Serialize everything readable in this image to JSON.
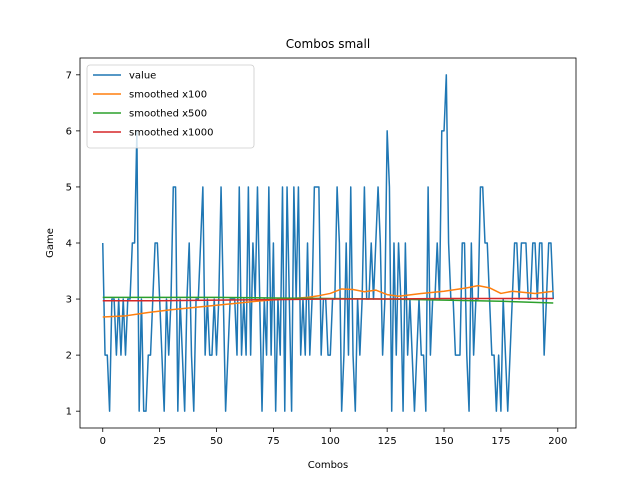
{
  "chart_data": {
    "type": "line",
    "title": "Combos small",
    "xlabel": "Combos",
    "ylabel": "Game",
    "xlim": [
      -10,
      208
    ],
    "ylim": [
      0.7,
      7.3
    ],
    "xticks": [
      0,
      25,
      50,
      75,
      100,
      125,
      150,
      175,
      200
    ],
    "yticks": [
      1,
      2,
      3,
      4,
      5,
      6,
      7
    ],
    "legend_position": "upper-left",
    "series": [
      {
        "name": "value",
        "color": "#1f77b4",
        "x_start": 0,
        "values": [
          4,
          2,
          2,
          1,
          3,
          3,
          2,
          3,
          2,
          3,
          2,
          3,
          3,
          4,
          4,
          6,
          1,
          3,
          1,
          1,
          2,
          2,
          3,
          4,
          4,
          3,
          2,
          1,
          3,
          2,
          3,
          5,
          5,
          1,
          3,
          2,
          1,
          3,
          4,
          2,
          1,
          3,
          3,
          4,
          5,
          2,
          3,
          2,
          2,
          3,
          2,
          3,
          5,
          3,
          1,
          2,
          3,
          3,
          3,
          2,
          5,
          2,
          3,
          2,
          5,
          2,
          4,
          3,
          5,
          3,
          1,
          3,
          2,
          5,
          2,
          4,
          1,
          3,
          2,
          5,
          1,
          5,
          3,
          1,
          5,
          3,
          5,
          2,
          3,
          2,
          4,
          2,
          3,
          5,
          5,
          5,
          2,
          3,
          3,
          2,
          2,
          3,
          3,
          5,
          4,
          1,
          2,
          4,
          2,
          5,
          2,
          1,
          3,
          2,
          3,
          5,
          3,
          3,
          4,
          3,
          4,
          5,
          4,
          2,
          3,
          6,
          5,
          1,
          4,
          2,
          4,
          3,
          1,
          4,
          2,
          3,
          2,
          1,
          2,
          3,
          2,
          2,
          1,
          5,
          2,
          3,
          3,
          4,
          3,
          6,
          6,
          7,
          4,
          3,
          3,
          2,
          2,
          2,
          4,
          4,
          2,
          1,
          4,
          2,
          3,
          3,
          5,
          5,
          4,
          4,
          3,
          2,
          2,
          1,
          2,
          1,
          3,
          2,
          1,
          2,
          3,
          4,
          4,
          3,
          4,
          4,
          4,
          3,
          3,
          4,
          4,
          3,
          4,
          4,
          2,
          3,
          4,
          4,
          3
        ]
      },
      {
        "name": "smoothed x100",
        "color": "#ff7f0e",
        "x": [
          0,
          10,
          20,
          30,
          40,
          50,
          60,
          70,
          80,
          90,
          95,
          100,
          105,
          110,
          115,
          120,
          125,
          130,
          140,
          150,
          160,
          165,
          170,
          175,
          180,
          185,
          190,
          198
        ],
        "values": [
          2.68,
          2.7,
          2.76,
          2.81,
          2.85,
          2.89,
          2.93,
          2.97,
          3.0,
          3.03,
          3.06,
          3.1,
          3.18,
          3.17,
          3.13,
          3.16,
          3.08,
          3.05,
          3.1,
          3.14,
          3.2,
          3.24,
          3.2,
          3.1,
          3.14,
          3.12,
          3.1,
          3.14
        ]
      },
      {
        "name": "smoothed x500",
        "color": "#2ca02c",
        "x": [
          0,
          25,
          50,
          75,
          100,
          125,
          150,
          175,
          198
        ],
        "values": [
          3.03,
          3.03,
          3.03,
          3.02,
          3.01,
          3.0,
          2.98,
          2.96,
          2.93
        ]
      },
      {
        "name": "smoothed x1000",
        "color": "#d62728",
        "x": [
          0,
          25,
          50,
          75,
          100,
          125,
          150,
          175,
          198
        ],
        "values": [
          2.97,
          2.97,
          2.98,
          2.99,
          3.0,
          3.0,
          3.01,
          3.01,
          3.01
        ]
      }
    ]
  }
}
